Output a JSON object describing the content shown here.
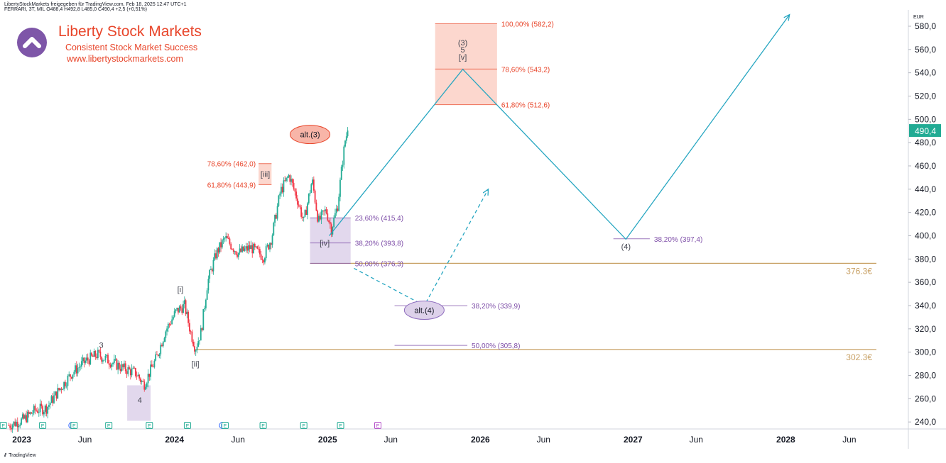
{
  "header": {
    "line": "LibertyStockMarkets freigegeben für TradingView.com, Feb 18, 2025 12:47 UTC+1",
    "symbol": "FERRARI, 3T, MIL",
    "ohlc": "O488,4 H492,8 L485,0 C490,4 +2,5 (+0,51%)"
  },
  "branding": {
    "title": "Liberty Stock Markets",
    "subtitle": "Consistent Stock Market Success",
    "url": "www.libertystockmarkets.com",
    "logo_icon": "chevron-up-icon",
    "color": "#e8452a",
    "logo_color": "#7e56a8"
  },
  "footer": {
    "logo_text": "TradingView"
  },
  "chart_data": {
    "type": "line",
    "currency_label": "EUR",
    "y_ticks": [
      240,
      260,
      280,
      300,
      320,
      340,
      360,
      380,
      400,
      420,
      440,
      460,
      480,
      500,
      520,
      540,
      560,
      580
    ],
    "y_tick_labels": [
      "240,0",
      "260,0",
      "280,0",
      "300,0",
      "320,0",
      "340,0",
      "360,0",
      "380,0",
      "400,0",
      "420,0",
      "440,0",
      "460,0",
      "480,0",
      "500,0",
      "520,0",
      "540,0",
      "560,0",
      "580,0"
    ],
    "ylim": [
      234,
      594
    ],
    "x_ticks": [
      {
        "label": "2023",
        "x": "2023-01-01",
        "bold": true
      },
      {
        "label": "Jun",
        "x": "2023-06-01",
        "bold": false
      },
      {
        "label": "2024",
        "x": "2024-01-01",
        "bold": true
      },
      {
        "label": "Jun",
        "x": "2024-06-01",
        "bold": false
      },
      {
        "label": "2025",
        "x": "2025-01-01",
        "bold": true
      },
      {
        "label": "Jun",
        "x": "2025-06-01",
        "bold": false
      },
      {
        "label": "2026",
        "x": "2026-01-01",
        "bold": true
      },
      {
        "label": "Jun",
        "x": "2026-06-01",
        "bold": false
      },
      {
        "label": "2027",
        "x": "2027-01-01",
        "bold": true
      },
      {
        "label": "Jun",
        "x": "2027-06-01",
        "bold": false
      },
      {
        "label": "2028",
        "x": "2028-01-01",
        "bold": true
      },
      {
        "label": "Jun",
        "x": "2028-06-01",
        "bold": false
      }
    ],
    "xlim": [
      "2022-11-10",
      "2028-10-20"
    ],
    "last_price": {
      "value": 490.4,
      "label": "490,4",
      "color": "#22ab94"
    },
    "price_series": {
      "name": "",
      "up_color": "#22ab94",
      "down_color": "#f23645",
      "points": [
        [
          "2022-12-01",
          237
        ],
        [
          "2023-01-05",
          242
        ],
        [
          "2023-02-01",
          250
        ],
        [
          "2023-03-01",
          252
        ],
        [
          "2023-04-01",
          268
        ],
        [
          "2023-05-01",
          282
        ],
        [
          "2023-06-01",
          292
        ],
        [
          "2023-07-01",
          298
        ],
        [
          "2023-08-01",
          292
        ],
        [
          "2023-09-01",
          286
        ],
        [
          "2023-10-01",
          282
        ],
        [
          "2023-10-20",
          272
        ],
        [
          "2023-11-20",
          296
        ],
        [
          "2023-12-10",
          318
        ],
        [
          "2024-01-05",
          335
        ],
        [
          "2024-01-25",
          340
        ],
        [
          "2024-02-08",
          318
        ],
        [
          "2024-02-20",
          303
        ],
        [
          "2024-03-05",
          318
        ],
        [
          "2024-03-20",
          360
        ],
        [
          "2024-04-10",
          385
        ],
        [
          "2024-05-01",
          398
        ],
        [
          "2024-06-01",
          385
        ],
        [
          "2024-07-01",
          390
        ],
        [
          "2024-08-01",
          382
        ],
        [
          "2024-08-20",
          398
        ],
        [
          "2024-09-10",
          438
        ],
        [
          "2024-10-01",
          452
        ],
        [
          "2024-10-20",
          432
        ],
        [
          "2024-11-05",
          412
        ],
        [
          "2024-11-25",
          448
        ],
        [
          "2024-12-10",
          412
        ],
        [
          "2024-12-28",
          422
        ],
        [
          "2025-01-10",
          406
        ],
        [
          "2025-01-25",
          426
        ],
        [
          "2025-02-05",
          462
        ],
        [
          "2025-02-12",
          482
        ],
        [
          "2025-02-18",
          490.4
        ]
      ]
    },
    "projection_lines": [
      {
        "name": "main-projection",
        "dashed": false,
        "color": "#26a6c1",
        "points": [
          [
            "2025-01-05",
            400
          ],
          [
            "2025-11-20",
            543
          ],
          [
            "2026-12-15",
            397
          ],
          [
            "2028-01-10",
            590
          ]
        ]
      },
      {
        "name": "alt-projection",
        "dashed": true,
        "color": "#26a6c1",
        "points": [
          [
            "2025-03-05",
            372
          ],
          [
            "2025-08-20",
            340
          ],
          [
            "2026-01-20",
            440
          ]
        ]
      }
    ],
    "zones": [
      {
        "name": "target-zone-3",
        "x0": "2025-09-15",
        "x1": "2026-02-10",
        "y0": 512.6,
        "y1": 582.2,
        "fill": "#fbd0c6",
        "stroke": "#f08c7a"
      },
      {
        "name": "zone-iii",
        "x0": "2024-07-20",
        "x1": "2024-08-20",
        "y0": 443.9,
        "y1": 462.0,
        "fill": "#fbd0c6",
        "stroke": "#f08c7a"
      },
      {
        "name": "zone-iv",
        "x0": "2024-11-20",
        "x1": "2025-02-25",
        "y0": 376.3,
        "y1": 415.4,
        "fill": "#ddd1ea",
        "stroke": "#b39ccf"
      },
      {
        "name": "zone-4",
        "x0": "2023-09-10",
        "x1": "2023-11-05",
        "y0": 241,
        "y1": 271.5,
        "fill": "#ddd1ea",
        "stroke": "#b39ccf"
      }
    ],
    "fib_levels": [
      {
        "label": "100,00% (582,2)",
        "y": 582.2,
        "x0": "2025-09-15",
        "x1": "2026-02-10",
        "color": "#e8452a",
        "label_side": "right"
      },
      {
        "label": "78,60% (543,2)",
        "y": 543.2,
        "x0": "2025-09-15",
        "x1": "2026-02-10",
        "color": "#e8452a",
        "label_side": "right"
      },
      {
        "label": "61,80% (512,6)",
        "y": 512.6,
        "x0": "2025-09-15",
        "x1": "2026-02-10",
        "color": "#e8452a",
        "label_side": "right"
      },
      {
        "label": "78,60% (462,0)",
        "y": 462.0,
        "x0": "2024-07-20",
        "x1": "2024-08-20",
        "color": "#e8452a",
        "label_side": "left"
      },
      {
        "label": "61,80% (443,9)",
        "y": 443.9,
        "x0": "2024-07-20",
        "x1": "2024-08-20",
        "color": "#e8452a",
        "label_side": "left"
      },
      {
        "label": "23,60% (415,4)",
        "y": 415.4,
        "x0": "2024-11-20",
        "x1": "2025-02-25",
        "color": "#7e4ea8",
        "label_side": "right"
      },
      {
        "label": "38,20% (393,8)",
        "y": 393.8,
        "x0": "2024-11-20",
        "x1": "2025-02-25",
        "color": "#7e4ea8",
        "label_side": "right"
      },
      {
        "label": "50,00% (376,3)",
        "y": 376.3,
        "x0": "2024-11-20",
        "x1": "2025-02-25",
        "color": "#7e4ea8",
        "label_side": "right"
      },
      {
        "label": "38,20% (339,9)",
        "y": 339.9,
        "x0": "2025-06-10",
        "x1": "2025-12-01",
        "color": "#7e4ea8",
        "label_side": "right"
      },
      {
        "label": "50,00% (305,8)",
        "y": 305.8,
        "x0": "2025-06-10",
        "x1": "2025-12-01",
        "color": "#7e4ea8",
        "label_side": "right"
      },
      {
        "label": "38,20% (397,4)",
        "y": 397.4,
        "x0": "2026-11-15",
        "x1": "2027-02-10",
        "color": "#7e4ea8",
        "label_side": "right"
      }
    ],
    "horizontal_lines": [
      {
        "value": 376.3,
        "label": "376.3€",
        "x0": "2024-11-20",
        "color": "#c8a165"
      },
      {
        "value": 302.3,
        "label": "302.3€",
        "x0": "2024-02-20",
        "color": "#c8a165"
      }
    ],
    "wave_labels": [
      {
        "text": "3",
        "x": "2023-07-10",
        "y": 300,
        "pos": "above"
      },
      {
        "text": "4",
        "x": "2023-10-10",
        "y": 259,
        "pos": "center"
      },
      {
        "text": "[i]",
        "x": "2024-01-15",
        "y": 348,
        "pos": "above"
      },
      {
        "text": "[ii]",
        "x": "2024-02-20",
        "y": 296,
        "pos": "below"
      },
      {
        "text": "[iii]",
        "x": "2024-08-05",
        "y": 453,
        "pos": "center"
      },
      {
        "text": "[iv]",
        "x": "2024-12-25",
        "y": 393.8,
        "pos": "center"
      },
      {
        "text": "(3)",
        "x": "2025-11-20",
        "y": 566,
        "pos": "center"
      },
      {
        "text": "5",
        "x": "2025-11-20",
        "y": 560,
        "pos": "center"
      },
      {
        "text": "[v]",
        "x": "2025-11-20",
        "y": 553.5,
        "pos": "center"
      },
      {
        "text": "(4)",
        "x": "2026-12-15",
        "y": 391,
        "pos": "center"
      }
    ],
    "ellipse_labels": [
      {
        "text": "alt.(3)",
        "x": "2024-11-20",
        "y": 487,
        "fill": "#f8b5a8",
        "stroke": "#e8452a"
      },
      {
        "text": "alt.(4)",
        "x": "2025-08-20",
        "y": 336,
        "fill": "#ddd1ea",
        "stroke": "#8e6cbe"
      }
    ],
    "event_markers": [
      {
        "text": "E",
        "x": "2022-11-18",
        "color": "#22ab94"
      },
      {
        "text": "E",
        "x": "2023-02-20",
        "color": "#22ab94"
      },
      {
        "text": "D",
        "x": "2023-05-01",
        "color": "#2962ff"
      },
      {
        "text": "E",
        "x": "2023-05-06",
        "color": "#22ab94"
      },
      {
        "text": "E",
        "x": "2023-07-28",
        "color": "#22ab94"
      },
      {
        "text": "E",
        "x": "2023-11-02",
        "color": "#22ab94"
      },
      {
        "text": "E",
        "x": "2024-02-01",
        "color": "#22ab94"
      },
      {
        "text": "D",
        "x": "2024-04-25",
        "color": "#2962ff"
      },
      {
        "text": "E",
        "x": "2024-05-01",
        "color": "#22ab94"
      },
      {
        "text": "E",
        "x": "2024-07-31",
        "color": "#22ab94"
      },
      {
        "text": "E",
        "x": "2024-11-05",
        "color": "#22ab94"
      },
      {
        "text": "E",
        "x": "2025-02-01",
        "color": "#22ab94"
      },
      {
        "text": "E",
        "x": "2025-05-01",
        "color": "#b44fc9"
      }
    ]
  }
}
